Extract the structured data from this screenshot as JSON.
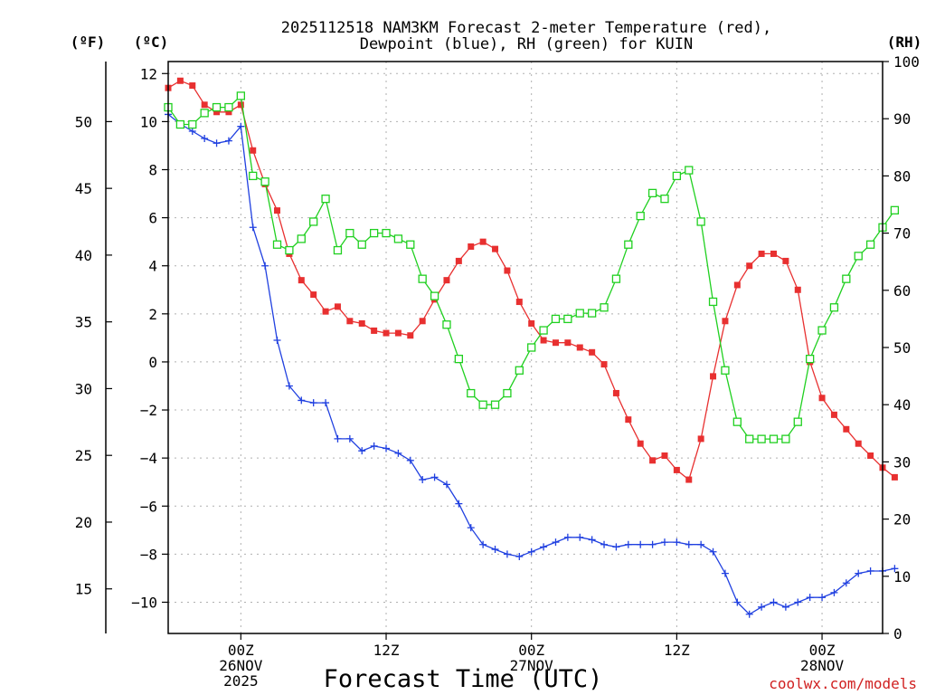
{
  "chart_data": {
    "type": "line",
    "title_lines": [
      "2025112518 NAM3KM Forecast 2-meter Temperature (red),",
      "Dewpoint (blue), RH (green) for KUIN"
    ],
    "xlabel": "Forecast Time (UTC)",
    "credit": "coolwx.com/models",
    "axis_unit_labels": {
      "fahrenheit": "(ºF)",
      "celsius": "(ºC)",
      "rh": "(RH)"
    },
    "x_hours_start": 0,
    "x_hours_end": 59,
    "y_celsius_range": [
      -11.3,
      12.5
    ],
    "y_celsius_ticks": [
      12,
      10,
      8,
      6,
      4,
      2,
      0,
      -2,
      -4,
      -6,
      -8,
      -10
    ],
    "y_celsius_tick_labels": [
      "12",
      "10",
      "8",
      "6",
      "4",
      "2",
      "0",
      "−2",
      "−4",
      "−6",
      "−8",
      "−10"
    ],
    "y_fahrenheit_ticks": [
      50,
      45,
      40,
      35,
      30,
      25,
      20,
      15
    ],
    "y_fahrenheit_tick_labels": [
      "50",
      "45",
      "40",
      "35",
      "30",
      "25",
      "20",
      "15"
    ],
    "y_rh_range": [
      0,
      100
    ],
    "y_rh_ticks": [
      100,
      90,
      80,
      70,
      60,
      50,
      40,
      30,
      20,
      10,
      0
    ],
    "y_rh_tick_labels": [
      "100",
      "90",
      "80",
      "70",
      "60",
      "50",
      "40",
      "30",
      "20",
      "10",
      "0"
    ],
    "x_ticks": [
      {
        "hour": 6,
        "lines": [
          "00Z",
          "26NOV",
          "2025"
        ]
      },
      {
        "hour": 18,
        "lines": [
          "12Z"
        ]
      },
      {
        "hour": 30,
        "lines": [
          "00Z",
          "27NOV"
        ]
      },
      {
        "hour": 42,
        "lines": [
          "12Z"
        ]
      },
      {
        "hour": 54,
        "lines": [
          "00Z",
          "28NOV"
        ]
      }
    ],
    "series": [
      {
        "name": "2-meter Temperature",
        "unit": "°C",
        "color": "#e83030",
        "marker": "filled-square",
        "values": [
          11.4,
          11.7,
          11.5,
          10.7,
          10.4,
          10.4,
          10.7,
          8.8,
          7.4,
          6.3,
          4.5,
          3.4,
          2.8,
          2.1,
          2.3,
          1.7,
          1.6,
          1.3,
          1.2,
          1.2,
          1.1,
          1.7,
          2.6,
          3.4,
          4.2,
          4.8,
          5.0,
          4.7,
          3.8,
          2.5,
          1.6,
          0.9,
          0.8,
          0.8,
          0.6,
          0.4,
          -0.1,
          -1.3,
          -2.4,
          -3.4,
          -4.1,
          -3.9,
          -4.5,
          -4.9,
          -3.2,
          -0.6,
          1.7,
          3.2,
          4.0,
          4.5,
          4.5,
          4.2,
          3.0,
          0.0,
          -1.5,
          -2.2,
          -2.8,
          -3.4,
          -3.9,
          -4.4,
          -4.8
        ]
      },
      {
        "name": "Dewpoint",
        "unit": "°C",
        "color": "#2040e0",
        "marker": "plus",
        "values": [
          10.3,
          9.9,
          9.6,
          9.3,
          9.1,
          9.2,
          9.8,
          5.6,
          4.0,
          0.9,
          -1.0,
          -1.6,
          -1.7,
          -1.7,
          -3.2,
          -3.2,
          -3.7,
          -3.5,
          -3.6,
          -3.8,
          -4.1,
          -4.9,
          -4.8,
          -5.1,
          -5.9,
          -6.9,
          -7.6,
          -7.8,
          -8.0,
          -8.1,
          -7.9,
          -7.7,
          -7.5,
          -7.3,
          -7.3,
          -7.4,
          -7.6,
          -7.7,
          -7.6,
          -7.6,
          -7.6,
          -7.5,
          -7.5,
          -7.6,
          -7.6,
          -7.9,
          -8.8,
          -10.0,
          -10.5,
          -10.2,
          -10.0,
          -10.2,
          -10.0,
          -9.8,
          -9.8,
          -9.6,
          -9.2,
          -8.8,
          -8.7,
          -8.7,
          -8.6
        ]
      },
      {
        "name": "RH",
        "unit": "%",
        "color": "#20d020",
        "marker": "open-square",
        "values": [
          92,
          89,
          89,
          91,
          92,
          92,
          94,
          80,
          79,
          68,
          67,
          69,
          72,
          76,
          67,
          70,
          68,
          70,
          70,
          69,
          68,
          62,
          59,
          54,
          48,
          42,
          40,
          40,
          42,
          46,
          50,
          53,
          55,
          55,
          56,
          56,
          57,
          62,
          68,
          73,
          77,
          76,
          80,
          81,
          72,
          58,
          46,
          37,
          34,
          34,
          34,
          34,
          37,
          48,
          53,
          57,
          62,
          66,
          68,
          71,
          74
        ]
      }
    ]
  }
}
